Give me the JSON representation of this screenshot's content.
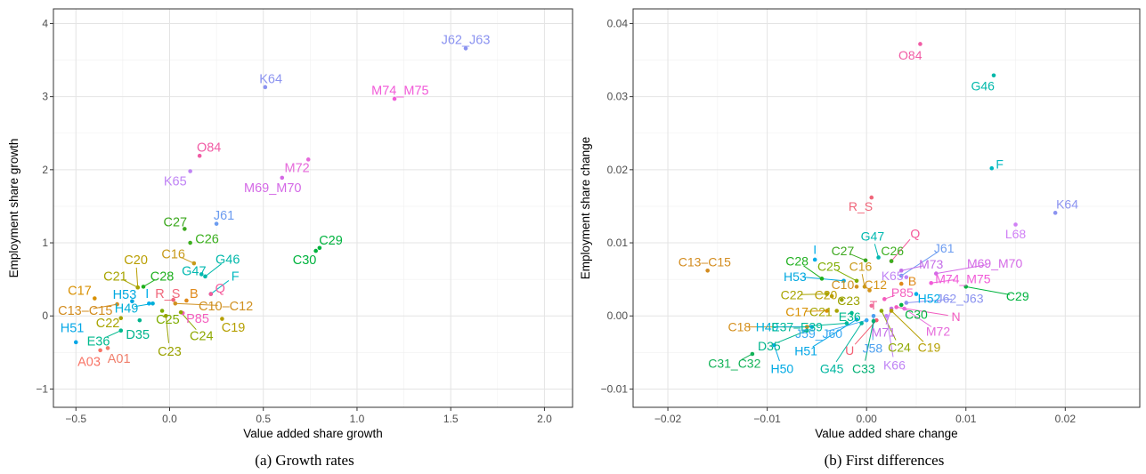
{
  "figure": {
    "caption_a": "(a) Growth rates",
    "caption_b": "(b) First differences"
  },
  "chart_data": [
    {
      "type": "scatter",
      "xlabel": "Value added share growth",
      "ylabel": "Employment share growth",
      "xlim": [
        -0.62,
        2.15
      ],
      "ylim": [
        -1.25,
        4.2
      ],
      "xticks": [
        -0.5,
        0.0,
        0.5,
        1.0,
        1.5,
        2.0
      ],
      "xtick_labels": [
        "−0.5",
        "0.0",
        "0.5",
        "1.0",
        "1.5",
        "2.0"
      ],
      "yticks": [
        -1,
        0,
        1,
        2,
        3,
        4
      ],
      "ytick_labels": [
        "−1",
        "0",
        "1",
        "2",
        "3",
        "4"
      ],
      "grid": true,
      "points": [
        {
          "label": "J62_J63",
          "x": 1.58,
          "y": 3.66,
          "lx": 1.58,
          "ly": 3.78,
          "color": "#8B93F0"
        },
        {
          "label": "K64",
          "x": 0.51,
          "y": 3.13,
          "lx": 0.54,
          "ly": 3.25,
          "color": "#8B93F0"
        },
        {
          "label": "M74_M75",
          "x": 1.2,
          "y": 2.97,
          "lx": 1.23,
          "ly": 3.09,
          "color": "#F15BD8"
        },
        {
          "label": "O84",
          "x": 0.16,
          "y": 2.19,
          "lx": 0.21,
          "ly": 2.31,
          "color": "#F15CA5"
        },
        {
          "label": "M72",
          "x": 0.74,
          "y": 2.14,
          "lx": 0.68,
          "ly": 2.03,
          "color": "#E66ADB"
        },
        {
          "label": "K65",
          "x": 0.11,
          "y": 1.98,
          "lx": 0.03,
          "ly": 1.85,
          "color": "#C084F5"
        },
        {
          "label": "M69_M70",
          "x": 0.6,
          "y": 1.89,
          "lx": 0.55,
          "ly": 1.76,
          "color": "#D469E6"
        },
        {
          "label": "J61",
          "x": 0.25,
          "y": 1.26,
          "lx": 0.29,
          "ly": 1.38,
          "color": "#6C9CF0"
        },
        {
          "label": "C27",
          "x": 0.08,
          "y": 1.19,
          "lx": 0.03,
          "ly": 1.29,
          "color": "#3CA81E"
        },
        {
          "label": "C26",
          "x": 0.11,
          "y": 1.0,
          "lx": 0.2,
          "ly": 1.06,
          "color": "#3CAF1F"
        },
        {
          "label": "C29",
          "x": 0.8,
          "y": 0.93,
          "lx": 0.86,
          "ly": 1.04,
          "color": "#00B33E"
        },
        {
          "label": "C30",
          "x": 0.78,
          "y": 0.89,
          "lx": 0.72,
          "ly": 0.77,
          "color": "#00B33E"
        },
        {
          "label": "C16",
          "x": 0.13,
          "y": 0.72,
          "lx": 0.02,
          "ly": 0.85,
          "color": "#C89A1A"
        },
        {
          "label": "G46",
          "x": 0.19,
          "y": 0.54,
          "lx": 0.31,
          "ly": 0.78,
          "color": "#00B8AA"
        },
        {
          "label": "G47",
          "x": 0.17,
          "y": 0.57,
          "lx": 0.13,
          "ly": 0.62,
          "color": "#00B8B0"
        },
        {
          "label": "C20",
          "x": -0.17,
          "y": 0.39,
          "lx": -0.18,
          "ly": 0.77,
          "color": "#B99E00"
        },
        {
          "label": "C21",
          "x": -0.17,
          "y": 0.39,
          "lx": -0.29,
          "ly": 0.55,
          "color": "#A8A400"
        },
        {
          "label": "C28",
          "x": -0.14,
          "y": 0.4,
          "lx": -0.04,
          "ly": 0.55,
          "color": "#1FB01F"
        },
        {
          "label": "F",
          "x": 0.22,
          "y": 0.3,
          "lx": 0.35,
          "ly": 0.55,
          "color": "#00B8C0"
        },
        {
          "label": "C17",
          "x": -0.4,
          "y": 0.24,
          "lx": -0.48,
          "ly": 0.35,
          "color": "#D89000"
        },
        {
          "label": "H53",
          "x": -0.2,
          "y": 0.2,
          "lx": -0.24,
          "ly": 0.3,
          "color": "#00A8E0"
        },
        {
          "label": "I",
          "x": -0.11,
          "y": 0.17,
          "lx": -0.12,
          "ly": 0.31,
          "color": "#00AEEA"
        },
        {
          "label": "R_S",
          "x": 0.02,
          "y": 0.22,
          "lx": -0.01,
          "ly": 0.31,
          "color": "#F0667A"
        },
        {
          "label": "B",
          "x": 0.09,
          "y": 0.21,
          "lx": 0.13,
          "ly": 0.31,
          "color": "#E08A1A"
        },
        {
          "label": "Q",
          "x": 0.22,
          "y": 0.3,
          "lx": 0.27,
          "ly": 0.38,
          "color": "#F5599A"
        },
        {
          "label": "C10–C12",
          "x": 0.03,
          "y": 0.17,
          "lx": 0.3,
          "ly": 0.14,
          "color": "#D09020"
        },
        {
          "label": "C13–C15",
          "x": -0.28,
          "y": 0.16,
          "lx": -0.45,
          "ly": 0.08,
          "color": "#D38C1F"
        },
        {
          "label": "H49",
          "x": -0.09,
          "y": 0.17,
          "lx": -0.23,
          "ly": 0.11,
          "color": "#00AFD8"
        },
        {
          "label": "P85",
          "x": 0.07,
          "y": 0.04,
          "lx": 0.15,
          "ly": -0.03,
          "color": "#F45EBE"
        },
        {
          "label": "C25",
          "x": -0.04,
          "y": 0.07,
          "lx": -0.01,
          "ly": -0.04,
          "color": "#7FAD00"
        },
        {
          "label": "C19",
          "x": 0.28,
          "y": -0.04,
          "lx": 0.34,
          "ly": -0.15,
          "color": "#B59F00"
        },
        {
          "label": "C22",
          "x": -0.26,
          "y": -0.03,
          "lx": -0.33,
          "ly": -0.09,
          "color": "#A8A400"
        },
        {
          "label": "H51",
          "x": -0.5,
          "y": -0.36,
          "lx": -0.52,
          "ly": -0.16,
          "color": "#00A6E6"
        },
        {
          "label": "D35",
          "x": -0.16,
          "y": -0.06,
          "lx": -0.17,
          "ly": -0.25,
          "color": "#00B48C"
        },
        {
          "label": "C24",
          "x": 0.06,
          "y": 0.05,
          "lx": 0.17,
          "ly": -0.27,
          "color": "#8EA800"
        },
        {
          "label": "E36",
          "x": -0.26,
          "y": -0.2,
          "lx": -0.38,
          "ly": -0.34,
          "color": "#00BA8E"
        },
        {
          "label": "C23",
          "x": -0.02,
          "y": 0.0,
          "lx": 0.0,
          "ly": -0.48,
          "color": "#9AA200"
        },
        {
          "label": "A01",
          "x": -0.33,
          "y": -0.44,
          "lx": -0.27,
          "ly": -0.58,
          "color": "#F07F6C"
        },
        {
          "label": "A03",
          "x": -0.37,
          "y": -0.47,
          "lx": -0.43,
          "ly": -0.62,
          "color": "#F87466"
        }
      ]
    },
    {
      "type": "scatter",
      "xlabel": "Value added share change",
      "ylabel": "Employment share change",
      "xlim": [
        -0.0235,
        0.0275
      ],
      "ylim": [
        -0.0125,
        0.042
      ],
      "xticks": [
        -0.02,
        -0.01,
        0.0,
        0.01,
        0.02
      ],
      "xtick_labels": [
        "−0.02",
        "−0.01",
        "0.00",
        "0.01",
        "0.02"
      ],
      "yticks": [
        -0.01,
        0.0,
        0.01,
        0.02,
        0.03,
        0.04
      ],
      "ytick_labels": [
        "−0.01",
        "0.00",
        "0.01",
        "0.02",
        "0.03",
        "0.04"
      ],
      "grid": true,
      "points": [
        {
          "label": "O84",
          "x": 0.0054,
          "y": 0.0372,
          "lx": 0.0044,
          "ly": 0.0357,
          "color": "#F15CA5"
        },
        {
          "label": "G46",
          "x": 0.0128,
          "y": 0.0329,
          "lx": 0.0117,
          "ly": 0.0315,
          "color": "#00B8AA"
        },
        {
          "label": "F",
          "x": 0.0126,
          "y": 0.0202,
          "lx": 0.0134,
          "ly": 0.0208,
          "color": "#00B8C0"
        },
        {
          "label": "K64",
          "x": 0.019,
          "y": 0.0141,
          "lx": 0.0202,
          "ly": 0.0153,
          "color": "#8B93F0"
        },
        {
          "label": "R_S",
          "x": 0.0005,
          "y": 0.0162,
          "lx": -0.0006,
          "ly": 0.015,
          "color": "#F0667A"
        },
        {
          "label": "L68",
          "x": 0.015,
          "y": 0.0125,
          "lx": 0.015,
          "ly": 0.0112,
          "color": "#D080F5"
        },
        {
          "label": "Q",
          "x": 0.0025,
          "y": 0.0075,
          "lx": 0.0049,
          "ly": 0.0113,
          "color": "#F5599A"
        },
        {
          "label": "J61",
          "x": 0.0035,
          "y": 0.0055,
          "lx": 0.0078,
          "ly": 0.0093,
          "color": "#6C9CF0"
        },
        {
          "label": "C13–C15",
          "x": -0.016,
          "y": 0.0062,
          "lx": -0.0163,
          "ly": 0.0074,
          "color": "#D38C1F"
        },
        {
          "label": "G47",
          "x": 0.0012,
          "y": 0.008,
          "lx": 0.0006,
          "ly": 0.0109,
          "color": "#00B8B0"
        },
        {
          "label": "I",
          "x": -0.0052,
          "y": 0.0077,
          "lx": -0.0052,
          "ly": 0.0091,
          "color": "#00AEEA"
        },
        {
          "label": "C27",
          "x": -0.0001,
          "y": 0.0076,
          "lx": -0.0024,
          "ly": 0.0089,
          "color": "#3CA81E"
        },
        {
          "label": "C26",
          "x": 0.0025,
          "y": 0.0075,
          "lx": 0.0026,
          "ly": 0.0089,
          "color": "#3CAF1F"
        },
        {
          "label": "C28",
          "x": -0.0045,
          "y": 0.0051,
          "lx": -0.007,
          "ly": 0.0075,
          "color": "#1FB01F"
        },
        {
          "label": "C25",
          "x": -0.001,
          "y": 0.0048,
          "lx": -0.0038,
          "ly": 0.0068,
          "color": "#7FAD00"
        },
        {
          "label": "C16",
          "x": -0.0002,
          "y": 0.004,
          "lx": -0.0006,
          "ly": 0.0068,
          "color": "#C89A1A"
        },
        {
          "label": "M73",
          "x": 0.0035,
          "y": 0.0062,
          "lx": 0.0065,
          "ly": 0.0071,
          "color": "#C46EE8"
        },
        {
          "label": "M69_M70",
          "x": 0.007,
          "y": 0.0058,
          "lx": 0.0129,
          "ly": 0.0072,
          "color": "#D469E6"
        },
        {
          "label": "H53",
          "x": -0.0023,
          "y": 0.0048,
          "lx": -0.0072,
          "ly": 0.0054,
          "color": "#00A8E0"
        },
        {
          "label": "K65",
          "x": 0.004,
          "y": 0.0053,
          "lx": 0.0026,
          "ly": 0.0055,
          "color": "#C084F5"
        },
        {
          "label": "M74_M75",
          "x": 0.0065,
          "y": 0.0045,
          "lx": 0.0097,
          "ly": 0.0051,
          "color": "#F15BD8"
        },
        {
          "label": "C10",
          "x": -0.001,
          "y": 0.004,
          "lx": -0.0024,
          "ly": 0.0043,
          "color": "#D09020"
        },
        {
          "label": "C12",
          "x": 0.0003,
          "y": 0.0035,
          "lx": 0.0009,
          "ly": 0.0043,
          "color": "#D69418"
        },
        {
          "label": "B",
          "x": 0.0035,
          "y": 0.0044,
          "lx": 0.0046,
          "ly": 0.0048,
          "color": "#E08A1A"
        },
        {
          "label": "C29",
          "x": 0.01,
          "y": 0.004,
          "lx": 0.0152,
          "ly": 0.0027,
          "color": "#00B33E"
        },
        {
          "label": "C22",
          "x": -0.004,
          "y": 0.003,
          "lx": -0.0075,
          "ly": 0.0029,
          "color": "#A8A400"
        },
        {
          "label": "C20",
          "x": -0.0035,
          "y": 0.0027,
          "lx": -0.0041,
          "ly": 0.0029,
          "color": "#B99E00"
        },
        {
          "label": "P85",
          "x": 0.0018,
          "y": 0.0023,
          "lx": 0.0036,
          "ly": 0.0032,
          "color": "#F45EBE"
        },
        {
          "label": "H52",
          "x": 0.005,
          "y": 0.003,
          "lx": 0.0063,
          "ly": 0.0024,
          "color": "#00ADE8"
        },
        {
          "label": "J62_J63",
          "x": 0.004,
          "y": 0.0018,
          "lx": 0.0094,
          "ly": 0.0024,
          "color": "#8B93F0"
        },
        {
          "label": "C23",
          "x": -0.0025,
          "y": 0.0022,
          "lx": -0.0018,
          "ly": 0.0021,
          "color": "#9AA200"
        },
        {
          "label": "T",
          "x": 0.0005,
          "y": 0.0014,
          "lx": 0.0007,
          "ly": 0.0015,
          "color": "#F06C9A"
        },
        {
          "label": "C17",
          "x": -0.004,
          "y": 0.0007,
          "lx": -0.007,
          "ly": 0.0006,
          "color": "#D89000"
        },
        {
          "label": "C21",
          "x": -0.003,
          "y": 0.0007,
          "lx": -0.0046,
          "ly": 0.0006,
          "color": "#A8A400"
        },
        {
          "label": "C30",
          "x": 0.0035,
          "y": 0.0015,
          "lx": 0.005,
          "ly": 0.0002,
          "color": "#00B33E"
        },
        {
          "label": "N",
          "x": 0.003,
          "y": 0.0012,
          "lx": 0.009,
          "ly": -0.0001,
          "color": "#F25CC0"
        },
        {
          "label": "E36",
          "x": -0.0015,
          "y": 0.0004,
          "lx": -0.0017,
          "ly": -0.0001,
          "color": "#00BA8E"
        },
        {
          "label": "C18",
          "x": -0.006,
          "y": -0.0015,
          "lx": -0.0128,
          "ly": -0.0015,
          "color": "#D4901E"
        },
        {
          "label": "H49",
          "x": -0.0055,
          "y": -0.0015,
          "lx": -0.01,
          "ly": -0.0015,
          "color": "#00AFD8"
        },
        {
          "label": "E37–E39",
          "x": -0.002,
          "y": -0.001,
          "lx": -0.007,
          "ly": -0.0015,
          "color": "#00B99A"
        },
        {
          "label": "J59_J60",
          "x": 0.0,
          "y": -0.0006,
          "lx": -0.0048,
          "ly": -0.0024,
          "color": "#39A8F2"
        },
        {
          "label": "M71",
          "x": 0.0025,
          "y": 0.001,
          "lx": 0.0017,
          "ly": -0.0022,
          "color": "#C46EE8"
        },
        {
          "label": "M72",
          "x": 0.0038,
          "y": 0.001,
          "lx": 0.0072,
          "ly": -0.0021,
          "color": "#E66ADB"
        },
        {
          "label": "C24",
          "x": 0.0015,
          "y": 0.0007,
          "lx": 0.0033,
          "ly": -0.0043,
          "color": "#8EA800"
        },
        {
          "label": "C19",
          "x": 0.0025,
          "y": 0.0007,
          "lx": 0.0063,
          "ly": -0.0043,
          "color": "#B59F00"
        },
        {
          "label": "D35",
          "x": -0.006,
          "y": -0.002,
          "lx": -0.0098,
          "ly": -0.0041,
          "color": "#00B48C"
        },
        {
          "label": "U",
          "x": 0.001,
          "y": -0.0006,
          "lx": -0.0017,
          "ly": -0.0047,
          "color": "#F45E72"
        },
        {
          "label": "J58",
          "x": 0.0007,
          "y": 0.0,
          "lx": 0.0006,
          "ly": -0.0044,
          "color": "#4C9FEF"
        },
        {
          "label": "H51",
          "x": -0.001,
          "y": -0.0005,
          "lx": -0.0061,
          "ly": -0.0048,
          "color": "#00A6E6"
        },
        {
          "label": "K66",
          "x": 0.002,
          "y": 0.0,
          "lx": 0.0028,
          "ly": -0.0067,
          "color": "#C084F5"
        },
        {
          "label": "C31_C32",
          "x": -0.0115,
          "y": -0.0052,
          "lx": -0.0133,
          "ly": -0.0065,
          "color": "#12B257"
        },
        {
          "label": "H50",
          "x": -0.0093,
          "y": -0.004,
          "lx": -0.0085,
          "ly": -0.0072,
          "color": "#00AAE4"
        },
        {
          "label": "G45",
          "x": -0.0005,
          "y": -0.001,
          "lx": -0.0035,
          "ly": -0.0072,
          "color": "#00B6A0"
        },
        {
          "label": "C33",
          "x": 0.0007,
          "y": -0.0007,
          "lx": -0.0003,
          "ly": -0.0072,
          "color": "#00B074"
        }
      ]
    }
  ]
}
